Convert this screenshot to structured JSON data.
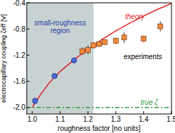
{
  "chart_data": {
    "type": "scatter",
    "x_label": "roughness factor [no units]",
    "y_label": "electrocapillary coupling ζeff [V]",
    "xlim": [
      0.98,
      1.5
    ],
    "xticks": [
      {
        "value": 1,
        "label": "1.0"
      },
      1.1,
      1.2,
      1.3,
      1.4,
      1.5
    ],
    "ylim": [
      -2.1,
      -0.4
    ],
    "yticks": [
      {
        "value": -2,
        "label": "-2.0"
      },
      {
        "value": -1.6,
        "label": "-1.6"
      },
      {
        "value": -1.2,
        "label": "-1.2"
      },
      {
        "value": -0.8,
        "label": "-0.8"
      },
      {
        "value": -0.4,
        "label": "-0.4"
      }
    ],
    "shaded_region": {
      "label": "small-roughness region",
      "x": [
        0.98,
        1.22
      ],
      "color": "#c9d2d2"
    },
    "reference_line": {
      "label": "true ζ",
      "value": -2.0,
      "color": "#2e9a3a",
      "line_style": "dashed"
    },
    "series": [
      {
        "name": "theory",
        "type": "line",
        "color": "#e02424",
        "x": [
          1.0,
          1.03,
          1.06,
          1.1,
          1.15,
          1.2,
          1.25,
          1.3,
          1.35,
          1.4,
          1.45,
          1.5
        ],
        "values": [
          -2.0,
          -1.8,
          -1.63,
          -1.45,
          -1.27,
          -1.11,
          -0.96,
          -0.83,
          -0.71,
          -0.6,
          -0.5,
          -0.41
        ]
      },
      {
        "type": "scatter",
        "marker": "circle",
        "color": "#4a66d8",
        "x": [
          1.01,
          1.08,
          1.15
        ],
        "values": [
          -1.9,
          -1.52,
          -1.28
        ]
      },
      {
        "name": "experiments",
        "type": "scatter",
        "marker": "square",
        "color": "#f28a3c",
        "x": [
          1.18,
          1.2,
          1.22,
          1.24,
          1.26,
          1.3,
          1.33,
          1.4,
          1.46
        ],
        "values": [
          -1.14,
          -1.12,
          -1.05,
          -1.03,
          -1.0,
          -0.98,
          -0.93,
          -0.95,
          -0.76
        ],
        "errors": [
          0.06,
          0.07,
          0.05,
          0.04,
          0.04,
          0.05,
          0.08,
          0.05,
          0.08
        ]
      }
    ]
  }
}
